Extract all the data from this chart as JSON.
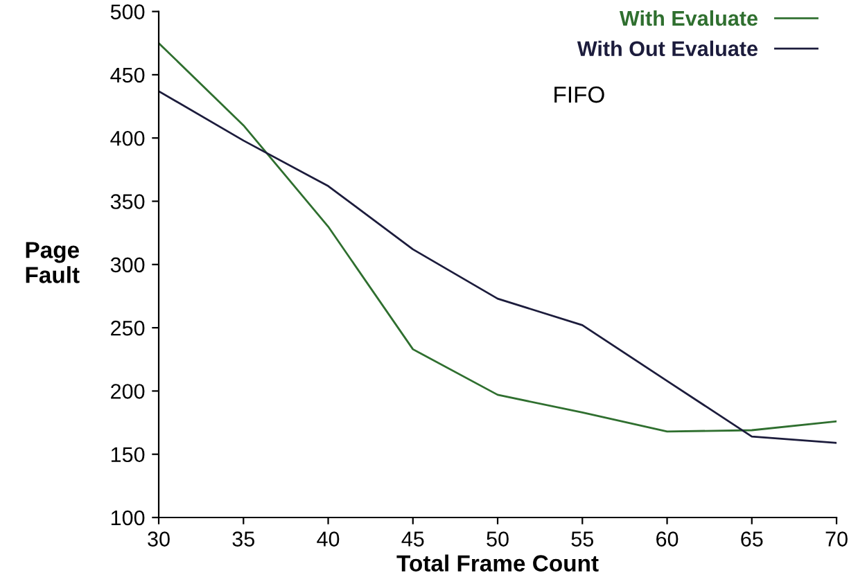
{
  "chart_data": {
    "type": "line",
    "title": "FIFO",
    "xlabel": "Total Frame Count",
    "ylabel": "Page\nFault",
    "x": [
      30,
      35,
      40,
      45,
      50,
      55,
      60,
      65,
      70
    ],
    "series": [
      {
        "name": "With Evaluate",
        "color": "#2f6f2f",
        "values": [
          475,
          410,
          330,
          233,
          197,
          183,
          168,
          169,
          176
        ]
      },
      {
        "name": "With Out Evaluate",
        "color": "#1c1c3c",
        "values": [
          437,
          398,
          362,
          312,
          273,
          252,
          208,
          164,
          159
        ]
      }
    ],
    "xlim": [
      30,
      70
    ],
    "ylim": [
      100,
      500
    ],
    "xticks": [
      30,
      35,
      40,
      45,
      50,
      55,
      60,
      65,
      70
    ],
    "yticks": [
      100,
      150,
      200,
      250,
      300,
      350,
      400,
      450,
      500
    ],
    "grid": false,
    "legend": "top right",
    "marker": "none",
    "line_style": "solid"
  }
}
